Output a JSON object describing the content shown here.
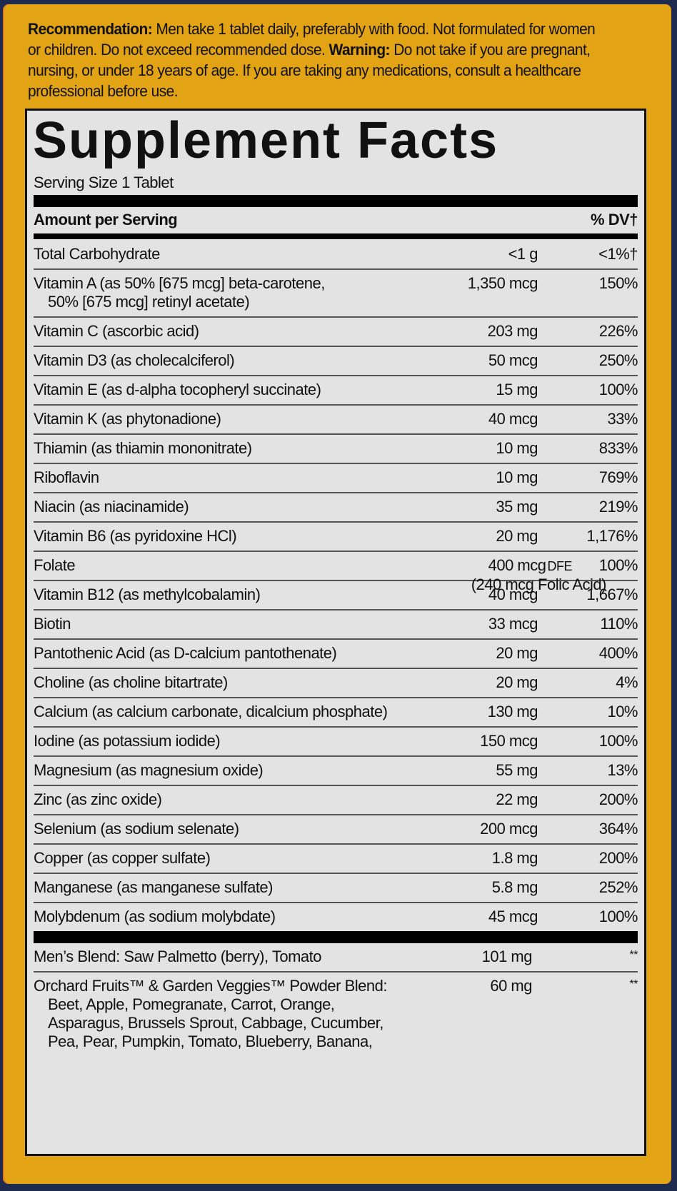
{
  "recommendation": {
    "label": "Recommendation:",
    "text": " Men take 1 tablet daily, preferably with food. Not formulated for women or children. Do not exceed recommended dose. ",
    "warning_label": "Warning:",
    "warning_text": " Do not take if you are pregnant, nursing, or under 18 years of age. If you are taking any medications, consult a healthcare professional before use."
  },
  "facts": {
    "title": "Supplement Facts",
    "serving_size": "Serving Size 1 Tablet",
    "header_left": "Amount per Serving",
    "header_right": "% DV†",
    "rows": [
      {
        "name": "Total Carbohydrate",
        "amount": "<1 g",
        "dv": "<1%†"
      },
      {
        "name": "Vitamin A (as 50% [675 mcg] beta-carotene,",
        "name2": "50% [675 mcg] retinyl acetate)",
        "amount": "1,350 mcg",
        "dv": "150%"
      },
      {
        "name": "Vitamin C (ascorbic acid)",
        "amount": "203 mg",
        "dv": "226%"
      },
      {
        "name": "Vitamin D3 (as cholecalciferol)",
        "amount": "50 mcg",
        "dv": "250%"
      },
      {
        "name": "Vitamin E (as d-alpha tocopheryl succinate)",
        "amount": "15 mg",
        "dv": "100%"
      },
      {
        "name": "Vitamin K (as phytonadione)",
        "amount": "40 mcg",
        "dv": "33%"
      },
      {
        "name": "Thiamin (as thiamin mononitrate)",
        "amount": "10 mg",
        "dv": "833%"
      },
      {
        "name": "Riboflavin",
        "amount": "10 mg",
        "dv": "769%"
      },
      {
        "name": "Niacin (as niacinamide)",
        "amount": "35 mg",
        "dv": "219%"
      },
      {
        "name": "Vitamin B6 (as pyridoxine HCl)",
        "amount": "20 mg",
        "dv": "1,176%"
      },
      {
        "name": "Folate",
        "amount": "400 mcg",
        "amount_unit": "DFE",
        "amount2": "(240 mcg Folic Acid)",
        "dv": "100%"
      },
      {
        "name": "Vitamin B12 (as methylcobalamin)",
        "amount": "40 mcg",
        "dv": "1,667%"
      },
      {
        "name": "Biotin",
        "amount": "33 mcg",
        "dv": "110%"
      },
      {
        "name": "Pantothenic Acid (as D-calcium pantothenate)",
        "amount": "20 mg",
        "dv": "400%"
      },
      {
        "name": "Choline (as choline bitartrate)",
        "amount": "20 mg",
        "dv": "4%"
      },
      {
        "name": "Calcium (as calcium carbonate, dicalcium phosphate)",
        "amount": "130 mg",
        "dv": "10%"
      },
      {
        "name": "Iodine (as potassium iodide)",
        "amount": "150 mcg",
        "dv": "100%"
      },
      {
        "name": "Magnesium (as magnesium oxide)",
        "amount": "55 mg",
        "dv": "13%"
      },
      {
        "name": "Zinc (as zinc oxide)",
        "amount": "22 mg",
        "dv": "200%"
      },
      {
        "name": "Selenium (as sodium selenate)",
        "amount": "200 mcg",
        "dv": "364%"
      },
      {
        "name": "Copper (as copper sulfate)",
        "amount": "1.8 mg",
        "dv": "200%"
      },
      {
        "name": "Manganese (as manganese sulfate)",
        "amount": "5.8 mg",
        "dv": "252%"
      },
      {
        "name": "Molybdenum (as sodium molybdate)",
        "amount": "45 mcg",
        "dv": "100%"
      }
    ],
    "blends": [
      {
        "name": "Men’s Blend: Saw Palmetto (berry), Tomato",
        "amount": "101 mg",
        "dv": "**"
      },
      {
        "name": "Orchard Fruits™ & Garden Veggies™ Powder Blend:",
        "sub": [
          "Beet, Apple, Pomegranate, Carrot, Orange,",
          "Asparagus, Brussels Sprout, Cabbage, Cucumber,",
          "Pea, Pear, Pumpkin, Tomato, Blueberry, Banana,"
        ],
        "amount": "60 mg",
        "dv": "**"
      }
    ]
  },
  "colors": {
    "panel": "#e2a314",
    "label_bg": "#e3e3e3",
    "ink": "#111111"
  }
}
